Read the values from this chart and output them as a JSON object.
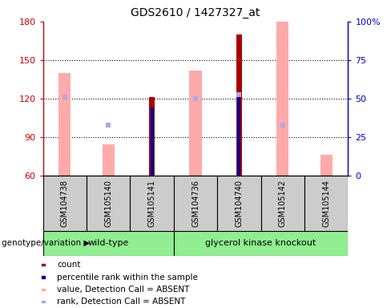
{
  "title": "GDS2610 / 1427327_at",
  "samples": [
    "GSM104738",
    "GSM105140",
    "GSM105141",
    "GSM104736",
    "GSM104740",
    "GSM105142",
    "GSM105144"
  ],
  "ylim_left": [
    60,
    180
  ],
  "ylim_right": [
    0,
    100
  ],
  "yticks_left": [
    60,
    90,
    120,
    150,
    180
  ],
  "yticks_right": [
    0,
    25,
    50,
    75,
    100
  ],
  "ytick_labels_right": [
    "0",
    "25",
    "50",
    "75",
    "100%"
  ],
  "ylabel_left_color": "#cc0000",
  "ylabel_right_color": "#0000cc",
  "count_color": "#aa0000",
  "rank_color": "#000099",
  "absent_value_color": "#ffaaaa",
  "absent_rank_color": "#aaaadd",
  "count_values": [
    null,
    null,
    121,
    null,
    170,
    null,
    null
  ],
  "rank_values": [
    null,
    null,
    113,
    null,
    124,
    null,
    null
  ],
  "absent_value": [
    140,
    84,
    null,
    142,
    null,
    181,
    76
  ],
  "absent_rank_dot_y": [
    121,
    99,
    null,
    120,
    123,
    99,
    null
  ],
  "wild_type_indices": [
    0,
    1,
    2
  ],
  "knockout_indices": [
    3,
    4,
    5,
    6
  ],
  "wt_label": "wild-type",
  "ko_label": "glycerol kinase knockout",
  "group_color": "#90ee90",
  "sample_box_color": "#cccccc",
  "genotype_label": "genotype/variation",
  "legend_items": [
    {
      "color": "#aa0000",
      "label": "count",
      "marker": "s"
    },
    {
      "color": "#000099",
      "label": "percentile rank within the sample",
      "marker": "s"
    },
    {
      "color": "#ffaaaa",
      "label": "value, Detection Call = ABSENT",
      "marker": "s"
    },
    {
      "color": "#aaaadd",
      "label": "rank, Detection Call = ABSENT",
      "marker": "s"
    }
  ]
}
